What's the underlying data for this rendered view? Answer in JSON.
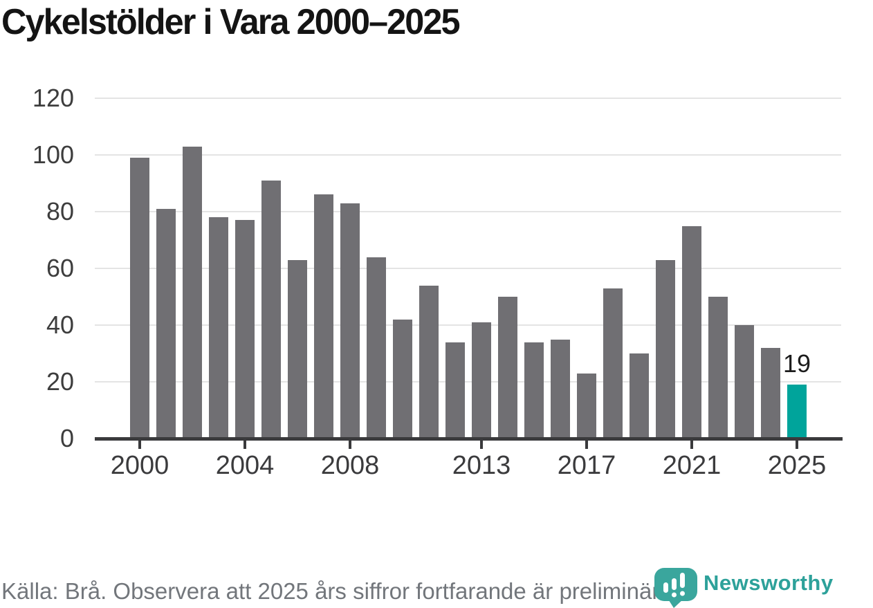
{
  "page": {
    "title": "Cykelstölder i Vara 2000–2025"
  },
  "chart_data": {
    "type": "bar",
    "title": "Cykelstölder i Vara 2000–2025",
    "categories": [
      2000,
      2001,
      2002,
      2003,
      2004,
      2005,
      2006,
      2007,
      2008,
      2009,
      2010,
      2011,
      2012,
      2013,
      2014,
      2015,
      2016,
      2017,
      2018,
      2019,
      2020,
      2021,
      2022,
      2023,
      2024,
      2025
    ],
    "values": [
      99,
      81,
      103,
      78,
      77,
      91,
      63,
      86,
      83,
      64,
      42,
      54,
      34,
      41,
      50,
      34,
      35,
      23,
      53,
      30,
      63,
      75,
      50,
      40,
      32,
      19
    ],
    "ylim": [
      0,
      120
    ],
    "yticks": [
      0,
      20,
      40,
      60,
      80,
      100,
      120
    ],
    "xticks": [
      2000,
      2004,
      2008,
      2013,
      2017,
      2021,
      2025
    ],
    "grid": "horizontal",
    "legend": "none",
    "bar_color": "#706f73",
    "highlight": {
      "category": 2025,
      "value": 19,
      "label": "19",
      "color": "#00a49b"
    }
  },
  "footer": {
    "source_text": "Källa: Brå. Observera att 2025 års siffror fortfarande är preliminära.",
    "brand_name": "Newsworthy"
  },
  "icons": {
    "logo": "newsworthy-logo-icon"
  },
  "colors": {
    "accent_teal": "#00a49b",
    "logo_teal": "#3aa69d",
    "gridline": "#e4e4e4",
    "axis": "#3a3a3c",
    "bar_gray": "#706f73"
  }
}
